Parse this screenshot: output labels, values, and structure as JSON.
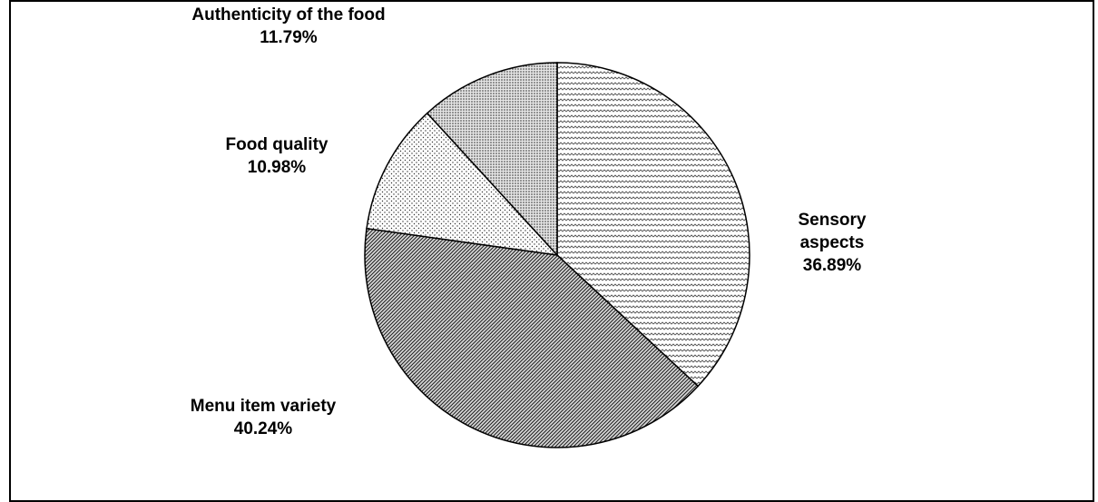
{
  "chart_data": {
    "type": "pie",
    "title": "",
    "start_angle_deg": 0,
    "direction": "clockwise",
    "slices": [
      {
        "label_lines": [
          "Sensory",
          "aspects"
        ],
        "value": 36.89,
        "value_label": "36.89%",
        "pattern": "zigzag-light"
      },
      {
        "label_lines": [
          "Menu item variety"
        ],
        "value": 40.24,
        "value_label": "40.24%",
        "pattern": "diagonal-dense"
      },
      {
        "label_lines": [
          "Food quality"
        ],
        "value": 10.98,
        "value_label": "10.98%",
        "pattern": "dots-sparse"
      },
      {
        "label_lines": [
          "Authenticity of the food"
        ],
        "value": 11.79,
        "value_label": "11.79%",
        "pattern": "dots-dense"
      }
    ]
  }
}
